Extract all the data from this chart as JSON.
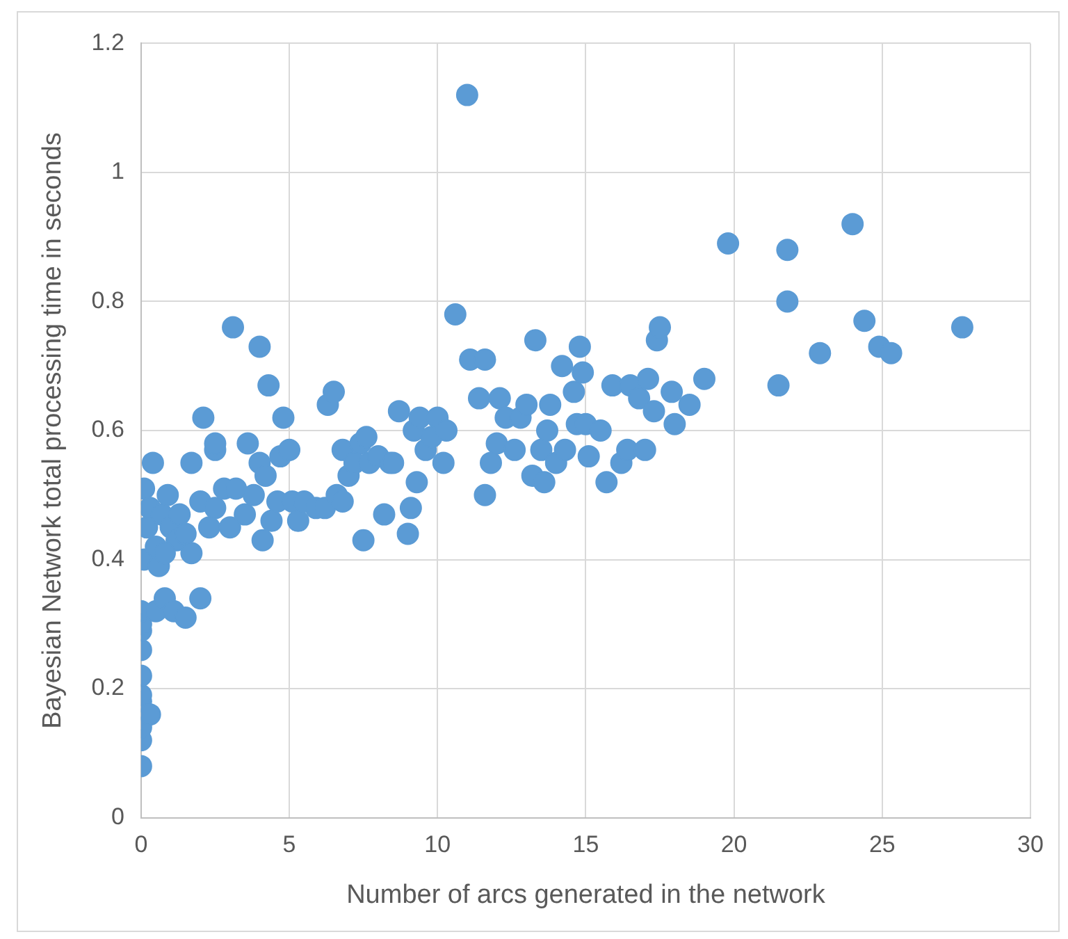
{
  "chart_data": {
    "type": "scatter",
    "xlabel": "Number of arcs generated in the network",
    "ylabel": "Bayesian Network total processing time in seconds",
    "xlim": [
      0,
      30
    ],
    "xticks": [
      0,
      5,
      10,
      15,
      20,
      25,
      30
    ],
    "ylim": [
      0,
      1.2
    ],
    "yticks": [
      {
        "value": 0,
        "label": "0"
      },
      {
        "value": 0.2,
        "label": "0.2"
      },
      {
        "value": 0.4,
        "label": "0.4"
      },
      {
        "value": 0.6,
        "label": "0.6"
      },
      {
        "value": 0.8,
        "label": "0.8"
      },
      {
        "value": 1,
        "label": "1"
      },
      {
        "value": 1.2,
        "label": "1.2"
      }
    ],
    "grid": true,
    "marker": "circle",
    "legend": false,
    "series": [
      {
        "color": "#5b9bd5",
        "x": [
          0,
          0,
          0,
          0,
          0,
          0,
          0,
          0,
          0,
          0,
          0.3,
          0.1,
          0.2,
          0.1,
          0.4,
          0.5,
          0.8,
          1.1,
          1.5,
          2.0,
          0.3,
          0.5,
          0.7,
          0.9,
          1.0,
          1.2,
          0.6,
          0.8,
          1.3,
          1.5,
          1.7,
          1.7,
          2.0,
          2.1,
          2.3,
          2.5,
          2.5,
          2.5,
          2.8,
          3.0,
          3.1,
          3.2,
          3.5,
          3.6,
          3.8,
          4.0,
          4.0,
          4.1,
          4.2,
          4.3,
          4.4,
          4.6,
          4.7,
          4.8,
          5.0,
          5.1,
          5.3,
          5.5,
          5.9,
          6.2,
          6.3,
          6.5,
          6.6,
          6.8,
          6.8,
          7.0,
          7.2,
          7.4,
          7.5,
          7.6,
          7.7,
          8.0,
          8.2,
          8.4,
          8.5,
          8.7,
          9.0,
          9.1,
          9.2,
          9.3,
          9.4,
          9.6,
          9.8,
          10.0,
          10.2,
          10.3,
          10.6,
          11.0,
          11.1,
          11.4,
          11.6,
          11.6,
          11.8,
          12.0,
          12.1,
          12.3,
          12.6,
          12.8,
          13.0,
          13.2,
          13.3,
          13.5,
          13.6,
          13.7,
          13.8,
          14.0,
          14.2,
          14.3,
          14.6,
          14.7,
          14.8,
          14.9,
          15.0,
          15.1,
          15.5,
          15.7,
          15.9,
          16.2,
          16.4,
          16.5,
          16.8,
          17.0,
          17.1,
          17.3,
          17.4,
          17.5,
          17.9,
          18.0,
          18.5,
          19.0,
          19.8,
          21.5,
          21.8,
          21.8,
          22.9,
          24.0,
          24.4,
          24.9,
          25.3,
          27.7
        ],
        "values": [
          0.08,
          0.12,
          0.14,
          0.18,
          0.19,
          0.22,
          0.26,
          0.29,
          0.3,
          0.32,
          0.16,
          0.4,
          0.45,
          0.51,
          0.55,
          0.32,
          0.34,
          0.32,
          0.31,
          0.34,
          0.48,
          0.42,
          0.47,
          0.5,
          0.45,
          0.43,
          0.39,
          0.41,
          0.47,
          0.44,
          0.41,
          0.55,
          0.49,
          0.62,
          0.45,
          0.48,
          0.57,
          0.58,
          0.51,
          0.45,
          0.76,
          0.51,
          0.47,
          0.58,
          0.5,
          0.73,
          0.55,
          0.43,
          0.53,
          0.67,
          0.46,
          0.49,
          0.56,
          0.62,
          0.57,
          0.49,
          0.46,
          0.49,
          0.48,
          0.48,
          0.64,
          0.66,
          0.5,
          0.49,
          0.57,
          0.53,
          0.55,
          0.58,
          0.43,
          0.59,
          0.55,
          0.56,
          0.47,
          0.55,
          0.55,
          0.63,
          0.44,
          0.48,
          0.6,
          0.52,
          0.62,
          0.57,
          0.59,
          0.62,
          0.55,
          0.6,
          0.78,
          1.12,
          0.71,
          0.65,
          0.71,
          0.5,
          0.55,
          0.58,
          0.65,
          0.62,
          0.57,
          0.62,
          0.64,
          0.53,
          0.74,
          0.57,
          0.52,
          0.6,
          0.64,
          0.55,
          0.7,
          0.57,
          0.66,
          0.61,
          0.73,
          0.69,
          0.61,
          0.56,
          0.6,
          0.52,
          0.67,
          0.55,
          0.57,
          0.67,
          0.65,
          0.57,
          0.68,
          0.63,
          0.74,
          0.76,
          0.66,
          0.61,
          0.64,
          0.68,
          0.89,
          0.67,
          0.88,
          0.8,
          0.72,
          0.92,
          0.77,
          0.73,
          0.72,
          0.76
        ]
      }
    ]
  }
}
